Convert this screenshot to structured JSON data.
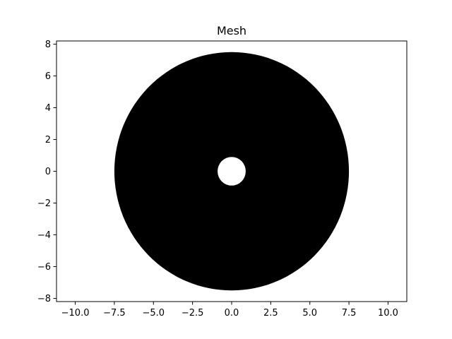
{
  "chart_data": {
    "type": "mesh",
    "title": "Mesh",
    "xlabel": "",
    "ylabel": "",
    "xlim": [
      -11.2,
      11.2
    ],
    "ylim": [
      -8.2,
      8.2
    ],
    "x_ticks": [
      -10.0,
      -7.5,
      -5.0,
      -2.5,
      0.0,
      2.5,
      5.0,
      7.5,
      10.0
    ],
    "x_tick_labels": [
      "−10.0",
      "−7.5",
      "−5.0",
      "−2.5",
      "0.0",
      "2.5",
      "5.0",
      "7.5",
      "10.0"
    ],
    "y_ticks": [
      -8,
      -6,
      -4,
      -2,
      0,
      2,
      4,
      6,
      8
    ],
    "y_tick_labels": [
      "−8",
      "−6",
      "−4",
      "−2",
      "0",
      "2",
      "4",
      "6",
      "8"
    ],
    "annulus": {
      "center": [
        0,
        0
      ],
      "inner_radius": 0.9,
      "outer_radius": 7.5
    },
    "grid": false,
    "colors": {
      "mesh": "#000000",
      "hole": "#ffffff",
      "axes": "#000000",
      "background": "#ffffff"
    }
  }
}
